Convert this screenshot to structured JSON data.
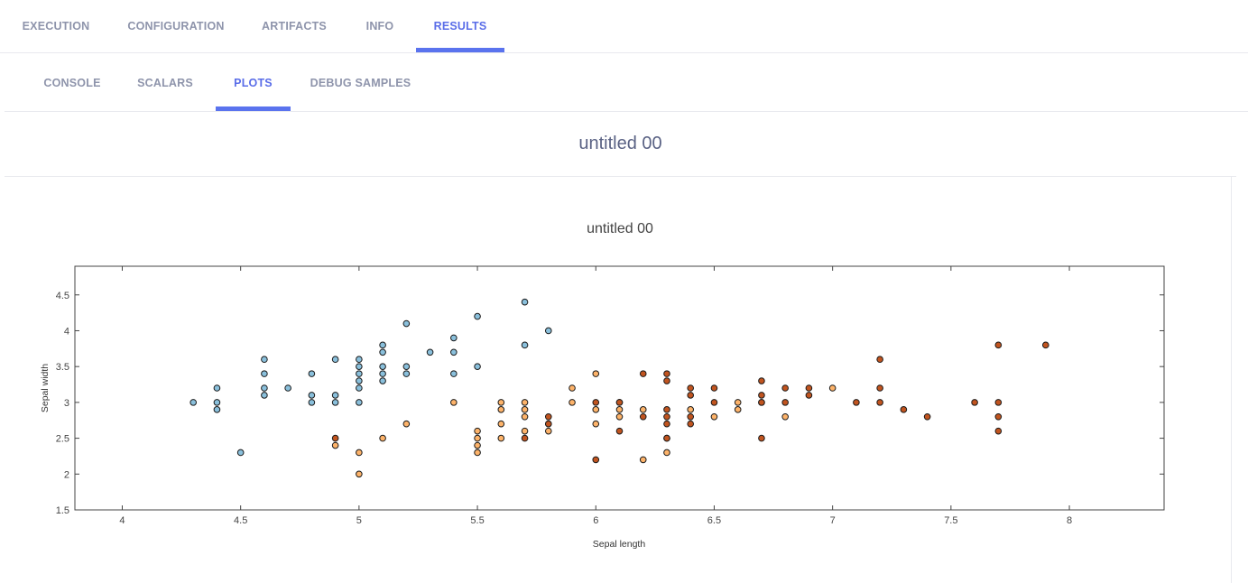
{
  "tabs": [
    {
      "label": "EXECUTION"
    },
    {
      "label": "CONFIGURATION"
    },
    {
      "label": "ARTIFACTS"
    },
    {
      "label": "INFO"
    },
    {
      "label": "RESULTS"
    }
  ],
  "subtabs": [
    {
      "label": "CONSOLE"
    },
    {
      "label": "SCALARS"
    },
    {
      "label": "PLOTS"
    },
    {
      "label": "DEBUG SAMPLES"
    }
  ],
  "colors": {
    "accent": "#5a73ee",
    "tab_inactive": "#8e94ab",
    "series_blue": "#8ac0dc",
    "series_orange": "#fdb36a",
    "series_brown": "#c1541f"
  },
  "page_title": "untitled 00",
  "chart_data": {
    "type": "scatter",
    "title": "untitled 00",
    "xlabel": "Sepal length",
    "ylabel": "Sepal width",
    "xlim": [
      3.8,
      8.4
    ],
    "ylim": [
      1.5,
      4.9
    ],
    "xticks": [
      "4",
      "4.5",
      "5",
      "5.5",
      "6",
      "6.5",
      "7",
      "7.5",
      "8"
    ],
    "yticks": [
      "1.5",
      "2",
      "2.5",
      "3",
      "3.5",
      "4",
      "4.5"
    ],
    "series": [
      {
        "color": "#8ac0dc",
        "points": [
          [
            4.3,
            3.0
          ],
          [
            4.4,
            2.9
          ],
          [
            4.4,
            3.0
          ],
          [
            4.4,
            3.2
          ],
          [
            4.5,
            2.3
          ],
          [
            4.6,
            3.1
          ],
          [
            4.6,
            3.2
          ],
          [
            4.6,
            3.4
          ],
          [
            4.6,
            3.6
          ],
          [
            4.7,
            3.2
          ],
          [
            4.8,
            3.0
          ],
          [
            4.8,
            3.1
          ],
          [
            4.8,
            3.4
          ],
          [
            4.9,
            3.0
          ],
          [
            4.9,
            3.1
          ],
          [
            4.9,
            3.6
          ],
          [
            5.0,
            3.0
          ],
          [
            5.0,
            3.2
          ],
          [
            5.0,
            3.3
          ],
          [
            5.0,
            3.4
          ],
          [
            5.0,
            3.5
          ],
          [
            5.0,
            3.6
          ],
          [
            5.1,
            3.3
          ],
          [
            5.1,
            3.4
          ],
          [
            5.1,
            3.5
          ],
          [
            5.1,
            3.7
          ],
          [
            5.1,
            3.8
          ],
          [
            5.2,
            3.4
          ],
          [
            5.2,
            3.5
          ],
          [
            5.2,
            4.1
          ],
          [
            5.3,
            3.7
          ],
          [
            5.4,
            3.4
          ],
          [
            5.4,
            3.7
          ],
          [
            5.4,
            3.9
          ],
          [
            5.5,
            3.5
          ],
          [
            5.5,
            4.2
          ],
          [
            5.7,
            3.8
          ],
          [
            5.7,
            4.4
          ],
          [
            5.8,
            4.0
          ]
        ]
      },
      {
        "color": "#fdb36a",
        "points": [
          [
            4.9,
            2.4
          ],
          [
            5.0,
            2.0
          ],
          [
            5.0,
            2.3
          ],
          [
            5.1,
            2.5
          ],
          [
            5.2,
            2.7
          ],
          [
            5.4,
            3.0
          ],
          [
            5.5,
            2.3
          ],
          [
            5.5,
            2.4
          ],
          [
            5.5,
            2.5
          ],
          [
            5.5,
            2.6
          ],
          [
            5.6,
            2.5
          ],
          [
            5.6,
            2.7
          ],
          [
            5.6,
            2.9
          ],
          [
            5.6,
            3.0
          ],
          [
            5.7,
            2.6
          ],
          [
            5.7,
            2.8
          ],
          [
            5.7,
            2.9
          ],
          [
            5.7,
            3.0
          ],
          [
            5.8,
            2.6
          ],
          [
            5.8,
            2.7
          ],
          [
            5.9,
            3.0
          ],
          [
            5.9,
            3.2
          ],
          [
            6.0,
            2.7
          ],
          [
            6.0,
            2.9
          ],
          [
            6.0,
            3.4
          ],
          [
            6.1,
            2.8
          ],
          [
            6.1,
            2.9
          ],
          [
            6.1,
            3.0
          ],
          [
            6.2,
            2.2
          ],
          [
            6.2,
            2.9
          ],
          [
            6.3,
            2.3
          ],
          [
            6.3,
            2.5
          ],
          [
            6.4,
            2.9
          ],
          [
            6.5,
            2.8
          ],
          [
            6.6,
            2.9
          ],
          [
            6.6,
            3.0
          ],
          [
            6.7,
            3.0
          ],
          [
            6.8,
            2.8
          ],
          [
            7.0,
            3.2
          ]
        ]
      },
      {
        "color": "#c1541f",
        "points": [
          [
            4.9,
            2.5
          ],
          [
            5.7,
            2.5
          ],
          [
            5.8,
            2.7
          ],
          [
            5.8,
            2.8
          ],
          [
            6.0,
            2.2
          ],
          [
            6.0,
            3.0
          ],
          [
            6.1,
            2.6
          ],
          [
            6.1,
            3.0
          ],
          [
            6.2,
            2.8
          ],
          [
            6.2,
            3.4
          ],
          [
            6.3,
            2.5
          ],
          [
            6.3,
            2.7
          ],
          [
            6.3,
            2.8
          ],
          [
            6.3,
            2.9
          ],
          [
            6.3,
            3.3
          ],
          [
            6.3,
            3.4
          ],
          [
            6.4,
            2.7
          ],
          [
            6.4,
            2.8
          ],
          [
            6.4,
            3.1
          ],
          [
            6.4,
            3.2
          ],
          [
            6.5,
            3.0
          ],
          [
            6.5,
            3.2
          ],
          [
            6.7,
            2.5
          ],
          [
            6.7,
            3.0
          ],
          [
            6.7,
            3.1
          ],
          [
            6.7,
            3.3
          ],
          [
            6.8,
            3.0
          ],
          [
            6.8,
            3.2
          ],
          [
            6.9,
            3.1
          ],
          [
            6.9,
            3.2
          ],
          [
            7.1,
            3.0
          ],
          [
            7.2,
            3.0
          ],
          [
            7.2,
            3.2
          ],
          [
            7.2,
            3.6
          ],
          [
            7.3,
            2.9
          ],
          [
            7.4,
            2.8
          ],
          [
            7.6,
            3.0
          ],
          [
            7.7,
            2.6
          ],
          [
            7.7,
            2.8
          ],
          [
            7.7,
            3.0
          ],
          [
            7.7,
            3.8
          ],
          [
            7.9,
            3.8
          ]
        ]
      }
    ]
  }
}
